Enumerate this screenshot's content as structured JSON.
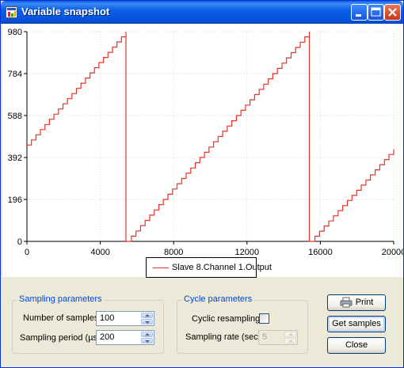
{
  "window": {
    "title": "Variable snapshot"
  },
  "chart_data": {
    "type": "line",
    "xlim": [
      0,
      20000
    ],
    "ylim": [
      0,
      980
    ],
    "x_ticks": [
      0,
      4000,
      8000,
      12000,
      16000,
      20000
    ],
    "y_ticks": [
      0,
      196,
      392,
      588,
      784,
      980
    ],
    "x_tick_labels": [
      "0",
      "4000",
      "8000",
      "12000",
      "16000",
      "20000"
    ],
    "y_tick_labels": [
      "0",
      "196",
      "392",
      "588",
      "784",
      "980"
    ],
    "grid": true,
    "legend_position": "bottom",
    "series": [
      {
        "name": "Slave 8.Channel 1.Output",
        "color": "#e8332a",
        "step": true,
        "x": [
          0,
          5400,
          5400,
          5450,
          15400,
          15400,
          15450,
          20000
        ],
        "y": [
          450,
          980,
          980,
          0,
          980,
          980,
          0,
          430
        ]
      }
    ]
  },
  "legend": {
    "label": "Slave 8.Channel 1.Output"
  },
  "sampling_group": {
    "title": "Sampling parameters",
    "samples_label": "Number of samples:",
    "samples_value": "100",
    "period_label": "Sampling period (µs):",
    "period_value": "200"
  },
  "cycle_group": {
    "title": "Cycle parameters",
    "cyclic_label": "Cyclic resampling:",
    "rate_label": "Sampling rate (sec):",
    "rate_value": "5"
  },
  "buttons": {
    "print": "Print",
    "get_samples": "Get samples",
    "close": "Close"
  }
}
